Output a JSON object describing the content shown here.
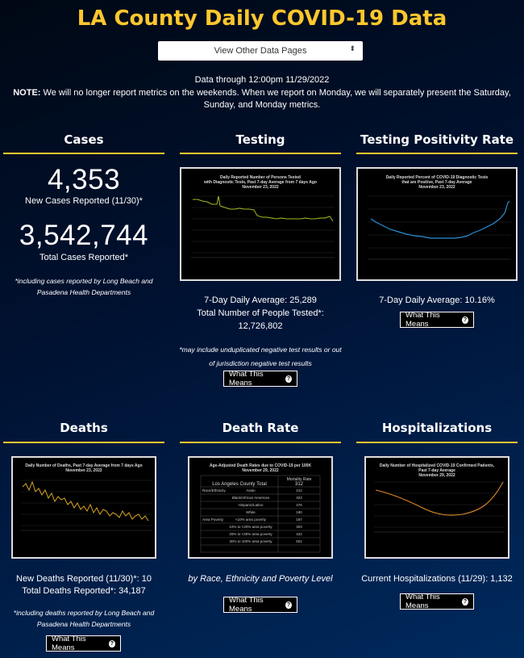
{
  "header": {
    "title": "LA County Daily COVID-19 Data",
    "select_label": "View Other Data Pages",
    "data_through": "Data through 12:00pm 11/29/2022",
    "note_label": "NOTE:",
    "note_text": " We will no longer report metrics on the weekends. When we report on Monday, we will separately present the Saturday, Sunday, and Monday metrics."
  },
  "cases": {
    "title": "Cases",
    "new_value": "4,353",
    "new_label": "New Cases Reported (11/30)*",
    "total_value": "3,542,744",
    "total_label": "Total Cases Reported*",
    "footnote": "*including cases reported by Long Beach and Pasadena Health Departments"
  },
  "testing": {
    "title": "Testing",
    "chart_title_1": "Daily Reported Number of Persons Tested",
    "chart_title_2": "with Diagnostic Tests, Past 7-day Average from 7 days Ago",
    "chart_title_3": "November 23, 2022",
    "avg": "7-Day Daily Average: 25,289",
    "total_label": "Total Number of People Tested*:",
    "total_value": "12,726,802",
    "footnote": "*may include unduplicated negative test results or out of jurisdiction negative test results",
    "button": "What This Means"
  },
  "positivity": {
    "title": "Testing Positivity Rate",
    "chart_title_1": "Daily Reported Percent of COVID-19 Diagnostic Tests",
    "chart_title_2": "that are Positive, Past 7-day Average",
    "chart_title_3": "November 23, 2022",
    "avg": "7-Day Daily Average: 10.16%",
    "button": "What This Means"
  },
  "deaths": {
    "title": "Deaths",
    "chart_title_1": "Daily Number of Deaths, Past 7-day Average from 7 days Ago",
    "chart_title_2": "November 23, 2022",
    "new": "New Deaths Reported (11/30)*: 10",
    "total": "Total Deaths Reported*: 34,187",
    "footnote": "*including deaths reported by Long Beach and Pasadena Health Departments",
    "button": "What This Means"
  },
  "death_rate": {
    "title": "Death Rate",
    "chart_title_1": "Age-Adjusted Death Rates due to COVID-19 per 100K",
    "chart_title_2": "November 29, 2022",
    "col_header": "Mortality Rate",
    "county_label": "Los Angeles County Total",
    "county_value": "312",
    "rows": [
      {
        "group": "Race/Ethnicity",
        "label": "Asian",
        "value": "212"
      },
      {
        "group": "",
        "label": "Black/African American",
        "value": "323"
      },
      {
        "group": "",
        "label": "Hispanic/Latino",
        "value": "476"
      },
      {
        "group": "",
        "label": "White",
        "value": "190"
      },
      {
        "group": "Area Poverty",
        "label": "<10% area poverty",
        "value": "187"
      },
      {
        "group": "",
        "label": "10% to <20% area poverty",
        "value": "303"
      },
      {
        "group": "",
        "label": "20% to <30% area poverty",
        "value": "422"
      },
      {
        "group": "",
        "label": "30% to 100% area poverty",
        "value": "501"
      }
    ],
    "caption": "by Race, Ethnicity and Poverty Level",
    "button": "What This Means"
  },
  "hosp": {
    "title": "Hospitalizations",
    "chart_title_1": "Daily Number of Hospitalized COVID-19 Confirmed Patients,",
    "chart_title_2": "Past 7-day Average",
    "chart_title_3": "November 29, 2022",
    "current": "Current Hospitalizations (11/29): 1,132",
    "button": "What This Means"
  },
  "colors": {
    "gold": "#ffc72c",
    "testing_line": "#a8b820",
    "positivity_line": "#2a8fd6",
    "deaths_line": "#d9a520",
    "hosp_line": "#e08a2a"
  }
}
